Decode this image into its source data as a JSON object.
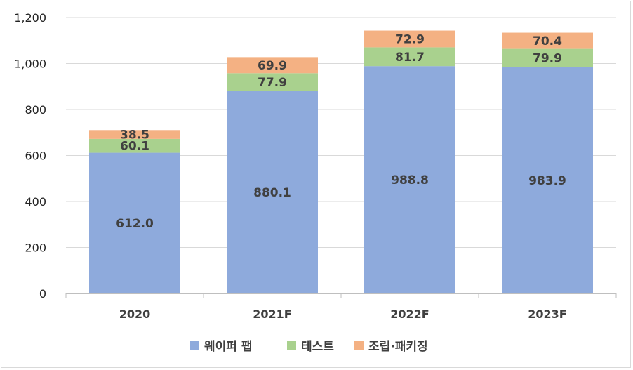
{
  "chart_data": {
    "type": "bar",
    "stacked": true,
    "categories": [
      "2020",
      "2021F",
      "2022F",
      "2023F"
    ],
    "series": [
      {
        "name": "웨이퍼 팹",
        "color": "#8eaadc",
        "values": [
          612.0,
          880.1,
          988.8,
          983.9
        ],
        "labels": [
          "612.0",
          "880.1",
          "988.8",
          "983.9"
        ]
      },
      {
        "name": "테스트",
        "color": "#a9d18e",
        "values": [
          60.1,
          77.9,
          81.7,
          79.9
        ],
        "labels": [
          "60.1",
          "77.9",
          "81.7",
          "79.9"
        ]
      },
      {
        "name": "조립·패키징",
        "color": "#f4b183",
        "values": [
          38.5,
          69.9,
          72.9,
          70.4
        ],
        "labels": [
          "38.5",
          "69.9",
          "72.9",
          "70.4"
        ]
      }
    ],
    "yticks": [
      0,
      200,
      400,
      600,
      800,
      1000,
      1200
    ],
    "ytick_labels": [
      "0",
      "200",
      "400",
      "600",
      "800",
      "1,000",
      "1,200"
    ],
    "ylim": [
      0,
      1200
    ],
    "grid": true,
    "legend_position": "bottom"
  }
}
